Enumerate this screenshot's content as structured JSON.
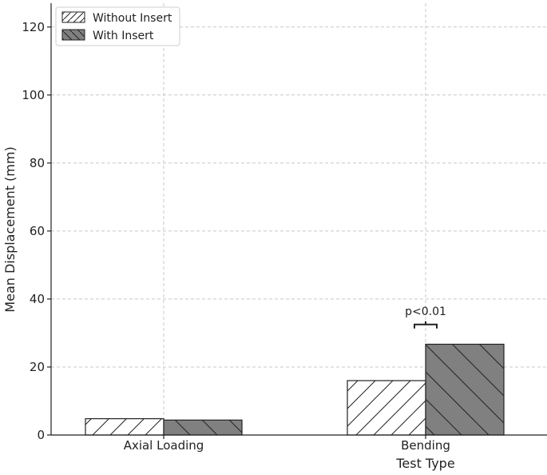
{
  "chart_data": {
    "type": "bar",
    "categories": [
      "Axial Loading",
      "Bending"
    ],
    "series": [
      {
        "name": "Without Insert",
        "values": [
          4.8,
          16.0
        ],
        "color": "#ffffff",
        "hatch": "forward"
      },
      {
        "name": "With Insert",
        "values": [
          4.4,
          26.7
        ],
        "color": "#808080",
        "hatch": "backward"
      }
    ],
    "xlabel": "Test Type",
    "ylabel": "Mean Displacement (mm)",
    "ylim": [
      0,
      127
    ],
    "yticks": [
      0,
      20,
      40,
      60,
      80,
      100,
      120
    ],
    "grid": true,
    "legend_position": "top-left",
    "annotations": [
      {
        "text": "p<0.01",
        "category": "Bending",
        "y": 32.5
      }
    ]
  }
}
